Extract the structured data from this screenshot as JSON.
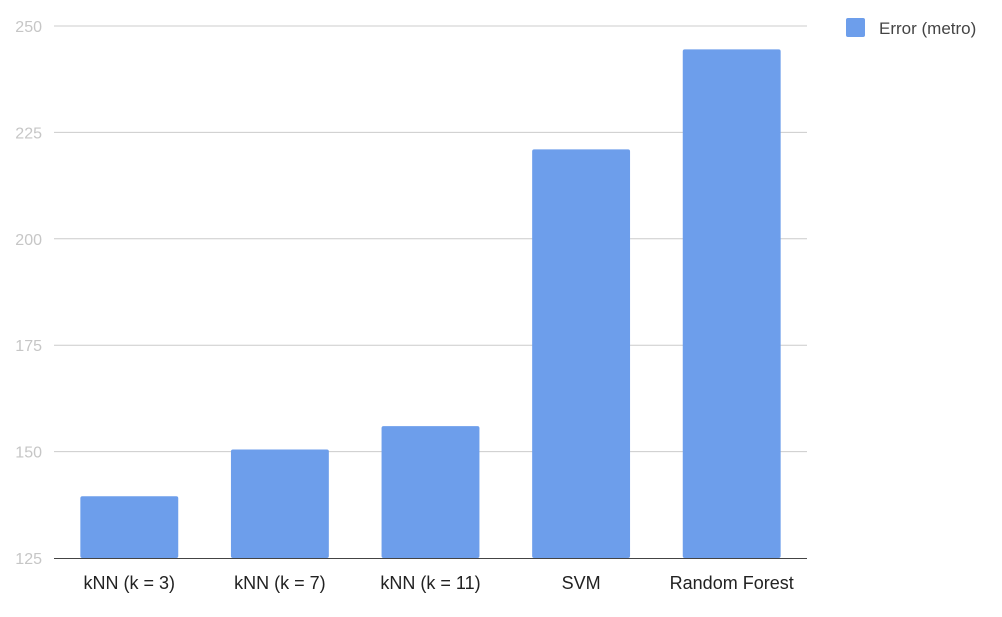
{
  "chart_data": {
    "type": "bar",
    "title": "",
    "xlabel": "",
    "ylabel": "",
    "categories": [
      "kNN (k = 3)",
      "kNN (k = 7)",
      "kNN (k = 11)",
      "SVM",
      "Random Forest"
    ],
    "series": [
      {
        "name": "Error (metro)",
        "color": "#6d9eeb",
        "values": [
          139.5,
          150.5,
          156,
          221,
          244.5
        ]
      }
    ],
    "ylim": [
      125,
      250
    ],
    "yticks": [
      "125",
      "150",
      "175",
      "200",
      "225",
      "250"
    ],
    "grid": true,
    "legend_position": "top-right"
  }
}
